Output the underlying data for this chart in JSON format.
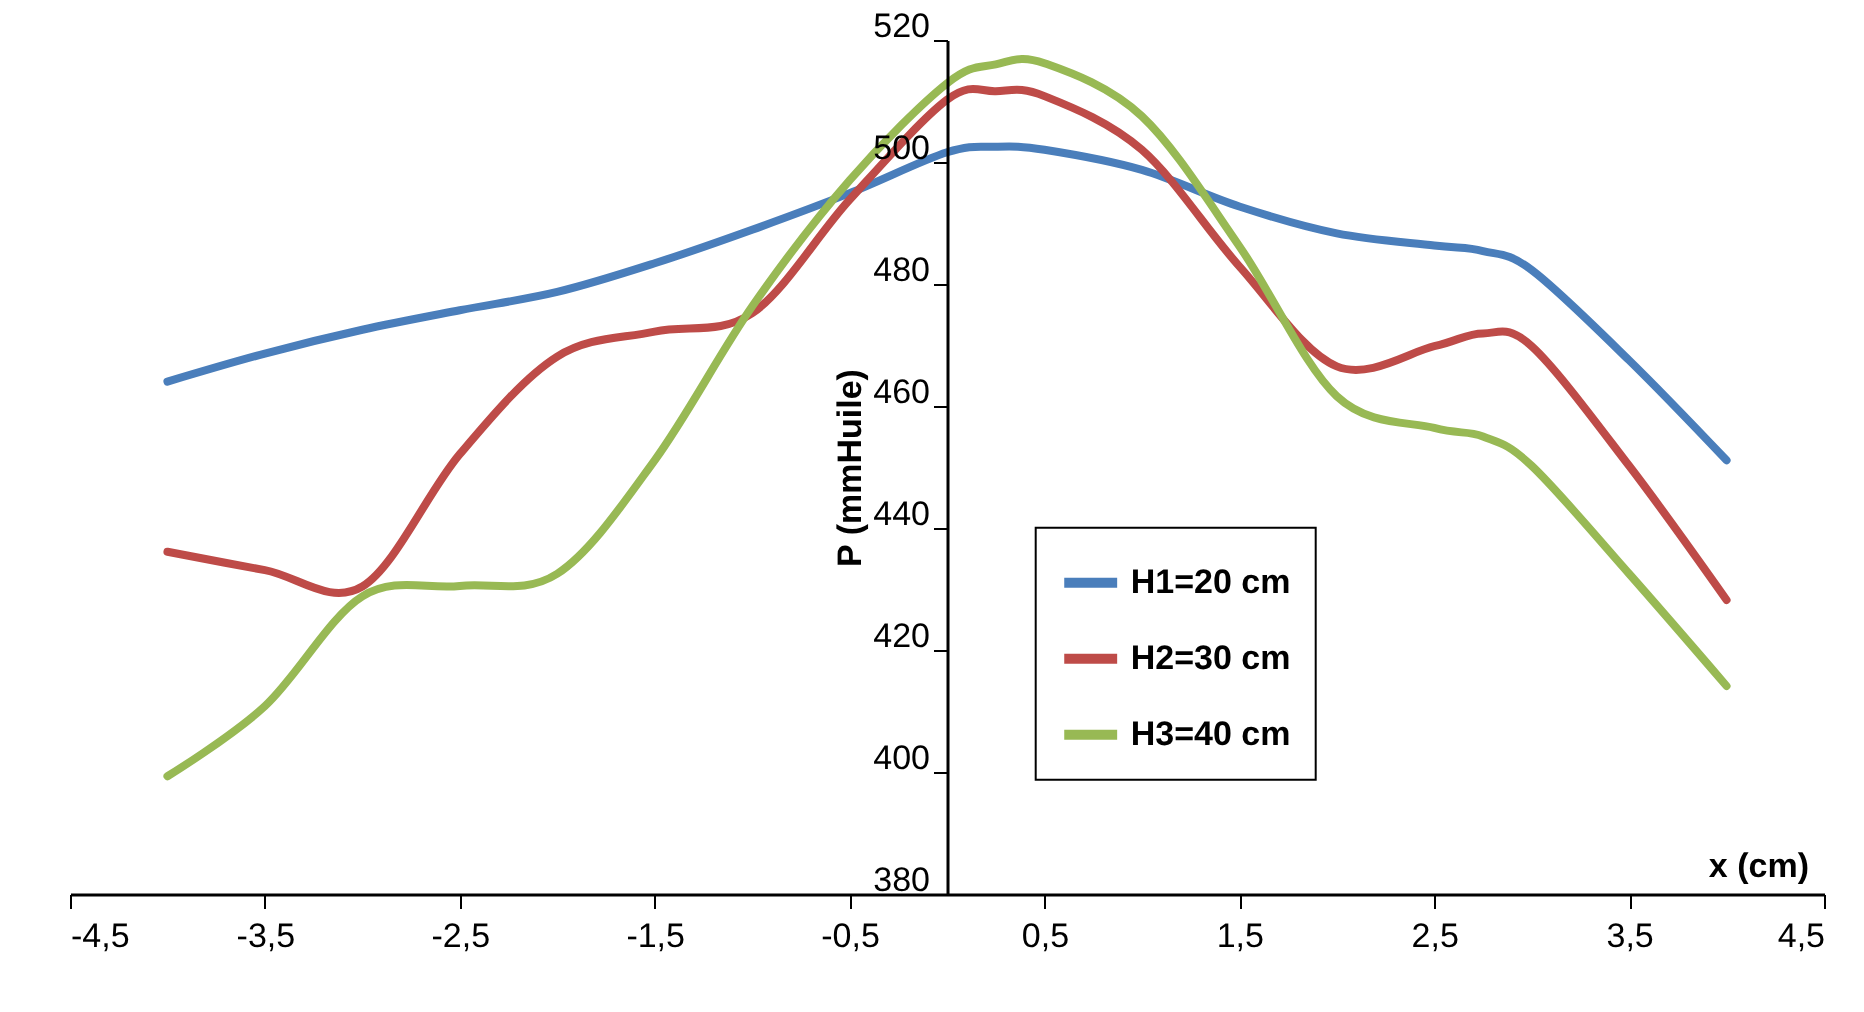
{
  "chart_data": {
    "type": "line",
    "xlabel": "x (cm)",
    "ylabel": "P (mmHuile)",
    "x": [
      -4,
      -3.5,
      -3,
      -2.5,
      -2,
      -1.5,
      -1,
      -0.5,
      0,
      0.25,
      0.5,
      1,
      1.5,
      2,
      2.5,
      2.75,
      3,
      3.5,
      4
    ],
    "series": [
      {
        "name": "H1=20 cm",
        "color": "#4a7ebb",
        "values": [
          464,
          468.6,
          472.5,
          475.7,
          478.7,
          483.4,
          488.9,
          494.9,
          501.6,
          502.5,
          502,
          498.7,
          492.7,
          488.3,
          486.3,
          485.4,
          482.3,
          467.5,
          451.1
        ]
      },
      {
        "name": "H2=30 cm",
        "color": "#be4b48",
        "values": [
          436.1,
          433.1,
          430.4,
          452.1,
          468.1,
          472.2,
          475.2,
          493.8,
          510.2,
          511.6,
          510.8,
          502,
          482.9,
          466.5,
          469.8,
          471.9,
          469.8,
          450.2,
          428.2
        ]
      },
      {
        "name": "H3=40 cm",
        "color": "#98b954",
        "values": [
          399.3,
          410.8,
          428.8,
          430.5,
          432.5,
          451.1,
          476.3,
          497,
          512.9,
          516,
          516.2,
          507.5,
          486.2,
          461.6,
          456.4,
          455,
          450.2,
          432.5,
          414.1
        ]
      }
    ],
    "xlim": [
      -4.5,
      4.5
    ],
    "xticks": [
      {
        "value": -4.5,
        "label": "-4,5"
      },
      {
        "value": -3.5,
        "label": "-3,5"
      },
      {
        "value": -2.5,
        "label": "-2,5"
      },
      {
        "value": -1.5,
        "label": "-1,5"
      },
      {
        "value": -0.5,
        "label": "-0,5"
      },
      {
        "value": 0.5,
        "label": "0,5"
      },
      {
        "value": 1.5,
        "label": "1,5"
      },
      {
        "value": 2.5,
        "label": "2,5"
      },
      {
        "value": 3.5,
        "label": "3,5"
      },
      {
        "value": 4.5,
        "label": "4,5"
      }
    ],
    "ylim": [
      380,
      520
    ],
    "yticks": [
      380,
      400,
      420,
      440,
      460,
      480,
      500,
      520
    ],
    "grid": false,
    "legend": "bottom right",
    "marker": "none",
    "line_style": "solid"
  }
}
